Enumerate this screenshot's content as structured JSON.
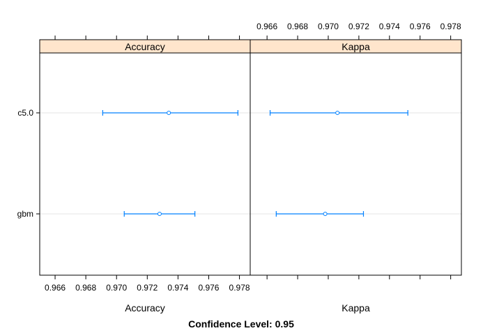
{
  "chart_data": {
    "type": "dotplot",
    "title": "",
    "subtitle": "Confidence Level: 0.95",
    "categories": [
      "c5.0",
      "gbm"
    ],
    "panels": [
      {
        "name": "Accuracy",
        "xlabel": "Accuracy",
        "xlim": [
          0.965,
          0.9787
        ],
        "ticks": [
          "0.966",
          "0.968",
          "0.970",
          "0.972",
          "0.974",
          "0.976",
          "0.978"
        ],
        "tick_labels_side": "bottom",
        "series": [
          {
            "category": "c5.0",
            "estimate": 0.9734,
            "lower": 0.9691,
            "upper": 0.9779
          },
          {
            "category": "gbm",
            "estimate": 0.9728,
            "lower": 0.9705,
            "upper": 0.9751
          }
        ]
      },
      {
        "name": "Kappa",
        "xlabel": "Kappa",
        "xlim": [
          0.9649,
          0.9787
        ],
        "ticks": [
          "0.966",
          "0.968",
          "0.970",
          "0.972",
          "0.974",
          "0.976",
          "0.978"
        ],
        "tick_labels_side": "top",
        "series": [
          {
            "category": "c5.0",
            "estimate": 0.9706,
            "lower": 0.9662,
            "upper": 0.9752
          },
          {
            "category": "gbm",
            "estimate": 0.9698,
            "lower": 0.9666,
            "upper": 0.9723
          }
        ]
      }
    ],
    "grid": "horizontal",
    "colors": {
      "strip": "#ffe5cc",
      "interval": "#0080ff",
      "grid": "#e6e6e6",
      "frame": "#000000"
    }
  }
}
